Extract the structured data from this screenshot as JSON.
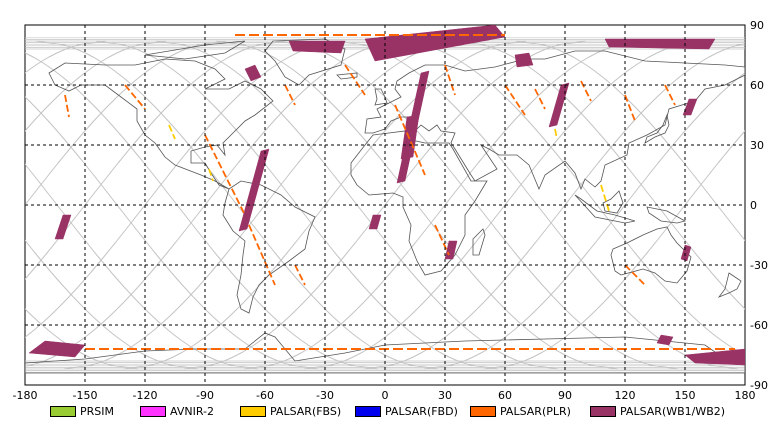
{
  "map": {
    "lon_ticks": [
      "-180",
      "-150",
      "-120",
      "-90",
      "-60",
      "-30",
      "0",
      "30",
      "60",
      "90",
      "120",
      "150",
      "180"
    ],
    "lat_ticks": [
      "90",
      "60",
      "30",
      "0",
      "-30",
      "-60",
      "-90"
    ],
    "lon_range": [
      -180,
      180
    ],
    "lat_range": [
      -90,
      90
    ],
    "grid": "dashed",
    "coastlines": true,
    "orbit_tracks": true
  },
  "legend": {
    "placement": "bottom",
    "items": [
      {
        "label": "PRSIM",
        "color": "#99cc33"
      },
      {
        "label": "AVNIR-2",
        "color": "#ff33ff"
      },
      {
        "label": "PALSAR(FBS)",
        "color": "#ffcc00"
      },
      {
        "label": "PALSAR(FBD)",
        "color": "#0000ee"
      },
      {
        "label": "PALSAR(PLR)",
        "color": "#ff6600"
      },
      {
        "label": "PALSAR(WB1/WB2)",
        "color": "#993366"
      }
    ]
  },
  "colors": {
    "orbit": "#c4c4c4",
    "coast": "#555555",
    "wb": "#993366",
    "plr": "#ff6600",
    "fbs": "#ffcc00"
  },
  "chart_data": {
    "type": "map",
    "xlim": [
      -180,
      180
    ],
    "ylim": [
      -90,
      90
    ],
    "series": [
      {
        "name": "PALSAR(WB1/WB2)",
        "color": "#993366",
        "swaths": [
          [
            [
              -62,
              27
            ],
            [
              -58,
              28
            ],
            [
              -69,
              -12
            ],
            [
              -73,
              -13
            ]
          ],
          [
            [
              18,
              66
            ],
            [
              22,
              67
            ],
            [
              10,
              12
            ],
            [
              6,
              11
            ]
          ],
          [
            [
              11,
              44
            ],
            [
              17,
              45
            ],
            [
              14,
              24
            ],
            [
              8,
              23
            ]
          ],
          [
            [
              32,
              -18
            ],
            [
              36,
              -18
            ],
            [
              34,
              -27
            ],
            [
              30,
              -27
            ]
          ],
          [
            [
              88,
              60
            ],
            [
              92,
              61
            ],
            [
              86,
              40
            ],
            [
              82,
              39
            ]
          ],
          [
            [
              -161,
              -5
            ],
            [
              -157,
              -5
            ],
            [
              -161,
              -17
            ],
            [
              -165,
              -17
            ]
          ],
          [
            [
              -6,
              -5
            ],
            [
              -2,
              -5
            ],
            [
              -4,
              -12
            ],
            [
              -8,
              -12
            ]
          ],
          [
            [
              -10,
              83
            ],
            [
              55,
              90
            ],
            [
              60,
              84
            ],
            [
              -5,
              72
            ]
          ],
          [
            [
              -70,
              68
            ],
            [
              -65,
              70
            ],
            [
              -62,
              64
            ],
            [
              -67,
              62
            ]
          ],
          [
            [
              -48,
              82
            ],
            [
              -20,
              82
            ],
            [
              -22,
              76
            ],
            [
              -46,
              77
            ]
          ],
          [
            [
              110,
              83
            ],
            [
              165,
              83
            ],
            [
              162,
              78
            ],
            [
              112,
              79
            ]
          ],
          [
            [
              65,
              75
            ],
            [
              72,
              76
            ],
            [
              74,
              70
            ],
            [
              66,
              69
            ]
          ],
          [
            [
              152,
              53
            ],
            [
              156,
              53
            ],
            [
              153,
              45
            ],
            [
              149,
              45
            ]
          ],
          [
            [
              -170,
              -68
            ],
            [
              -150,
              -70
            ],
            [
              -155,
              -76
            ],
            [
              -178,
              -74
            ]
          ],
          [
            [
              150,
              -75
            ],
            [
              180,
              -72
            ],
            [
              180,
              -80
            ],
            [
              155,
              -79
            ]
          ],
          [
            [
              138,
              -65
            ],
            [
              144,
              -66
            ],
            [
              142,
              -70
            ],
            [
              136,
              -69
            ]
          ],
          [
            [
              150,
              -20
            ],
            [
              153,
              -21
            ],
            [
              151,
              -28
            ],
            [
              148,
              -27
            ]
          ]
        ]
      },
      {
        "name": "PALSAR(PLR)",
        "color": "#ff6600",
        "tracks": [
          [
            [
              -160,
              55
            ],
            [
              -158,
              44
            ]
          ],
          [
            [
              -90,
              35
            ],
            [
              -70,
              -5
            ]
          ],
          [
            [
              -68,
              -10
            ],
            [
              -55,
              -40
            ]
          ],
          [
            [
              -20,
              70
            ],
            [
              -10,
              55
            ]
          ],
          [
            [
              5,
              50
            ],
            [
              20,
              15
            ]
          ],
          [
            [
              30,
              70
            ],
            [
              35,
              55
            ]
          ],
          [
            [
              60,
              60
            ],
            [
              70,
              45
            ]
          ],
          [
            [
              75,
              58
            ],
            [
              80,
              48
            ]
          ],
          [
            [
              98,
              62
            ],
            [
              103,
              52
            ]
          ],
          [
            [
              120,
              55
            ],
            [
              125,
              42
            ]
          ],
          [
            [
              140,
              60
            ],
            [
              145,
              50
            ]
          ],
          [
            [
              -130,
              60
            ],
            [
              -120,
              48
            ]
          ],
          [
            [
              -50,
              60
            ],
            [
              -45,
              50
            ]
          ],
          [
            [
              25,
              -10
            ],
            [
              32,
              -25
            ]
          ],
          [
            [
              -45,
              -30
            ],
            [
              -40,
              -40
            ]
          ],
          [
            [
              120,
              -30
            ],
            [
              130,
              -40
            ]
          ]
        ],
        "bands": [
          {
            "lat": 85,
            "from": -75,
            "to": 60
          },
          {
            "lat": -72,
            "from": -150,
            "to": 175
          }
        ]
      },
      {
        "name": "PALSAR(FBS)",
        "color": "#ffcc00",
        "tracks": [
          [
            [
              -108,
              40
            ],
            [
              -105,
              33
            ]
          ],
          [
            [
              108,
              10
            ],
            [
              112,
              -3
            ]
          ],
          [
            [
              85,
              38
            ],
            [
              86,
              33
            ]
          ],
          [
            [
              -88,
              18
            ],
            [
              -86,
              12
            ]
          ]
        ]
      }
    ]
  }
}
